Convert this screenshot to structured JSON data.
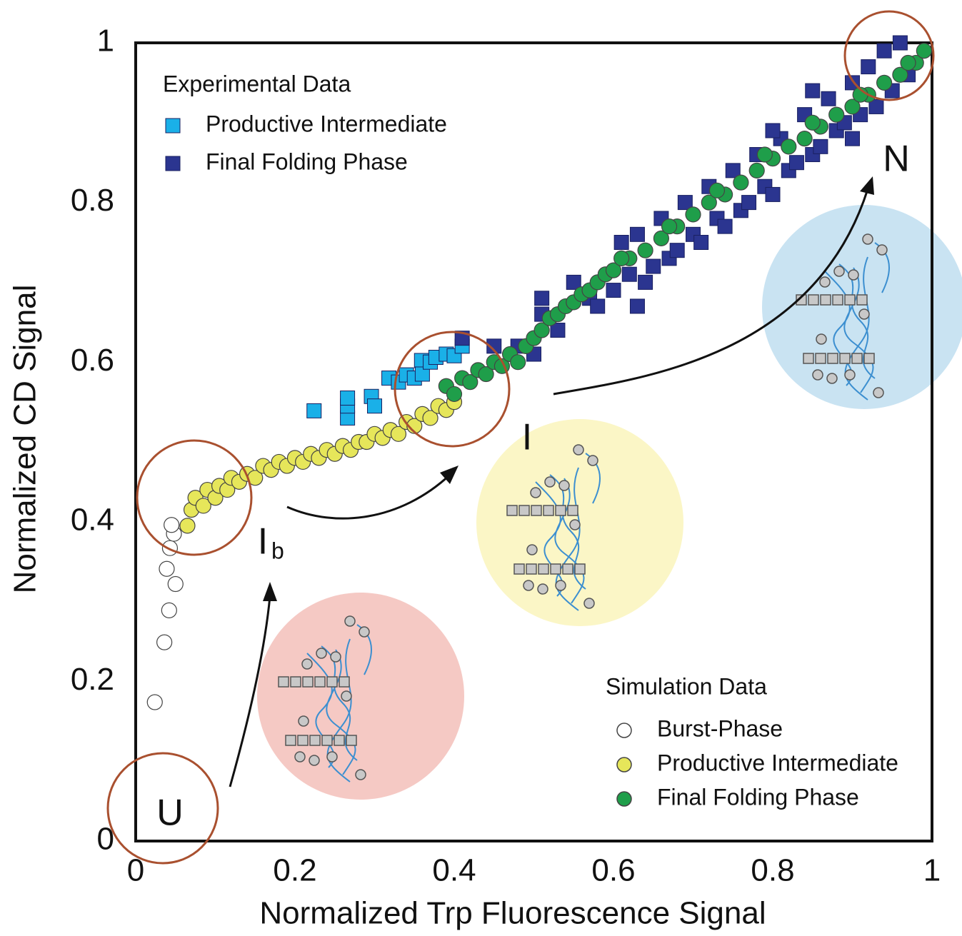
{
  "chart_data": {
    "type": "scatter",
    "x_label": "Normalized Trp Fluorescence Signal",
    "y_label": "Normalized CD Signal",
    "xlim": [
      0,
      1
    ],
    "ylim": [
      0,
      1
    ],
    "xticks": [
      0,
      0.2,
      0.4,
      0.6,
      0.8,
      1
    ],
    "yticks": [
      0,
      0.2,
      0.4,
      0.6,
      0.8,
      1
    ],
    "legend_titles": [
      "Experimental Data",
      "Simulation Data"
    ],
    "state_labels": [
      {
        "text": "U"
      },
      {
        "text": "I",
        "subscript": "b"
      },
      {
        "text": "I"
      },
      {
        "text": "N"
      }
    ],
    "series": [
      {
        "name": "Productive Intermediate",
        "color": "#1ab0e8",
        "marker": "square",
        "x": [
          0.224,
          0.266,
          0.266,
          0.266,
          0.296,
          0.3,
          0.318,
          0.33,
          0.34,
          0.35,
          0.359,
          0.36,
          0.37,
          0.377,
          0.39,
          0.4,
          0.41
        ],
        "values": [
          0.539,
          0.53,
          0.545,
          0.555,
          0.557,
          0.545,
          0.58,
          0.575,
          0.584,
          0.58,
          0.602,
          0.585,
          0.6,
          0.606,
          0.61,
          0.608,
          0.62
        ]
      },
      {
        "name": "Final Folding Phase",
        "color": "#2b3590",
        "marker": "square",
        "x": [
          0.41,
          0.45,
          0.48,
          0.5,
          0.51,
          0.53,
          0.55,
          0.57,
          0.58,
          0.6,
          0.61,
          0.62,
          0.63,
          0.64,
          0.65,
          0.66,
          0.67,
          0.68,
          0.69,
          0.7,
          0.71,
          0.72,
          0.73,
          0.74,
          0.75,
          0.76,
          0.77,
          0.78,
          0.79,
          0.8,
          0.81,
          0.82,
          0.83,
          0.84,
          0.85,
          0.86,
          0.87,
          0.88,
          0.89,
          0.9,
          0.91,
          0.92,
          0.93,
          0.94,
          0.95,
          0.96,
          0.97,
          0.9,
          0.85,
          0.8,
          0.51,
          0.63
        ],
        "values": [
          0.63,
          0.62,
          0.62,
          0.61,
          0.66,
          0.64,
          0.7,
          0.68,
          0.67,
          0.69,
          0.75,
          0.71,
          0.76,
          0.7,
          0.72,
          0.78,
          0.73,
          0.74,
          0.8,
          0.76,
          0.75,
          0.82,
          0.78,
          0.77,
          0.84,
          0.79,
          0.8,
          0.86,
          0.82,
          0.81,
          0.88,
          0.84,
          0.85,
          0.91,
          0.86,
          0.87,
          0.93,
          0.89,
          0.9,
          0.95,
          0.91,
          0.97,
          0.92,
          0.99,
          0.94,
          1,
          0.96,
          0.88,
          0.94,
          0.89,
          0.68,
          0.67
        ]
      },
      {
        "name": "Burst-Phase",
        "color": "#ffffff",
        "marker": "circle",
        "x": [
          0.024,
          0.036,
          0.042,
          0.039,
          0.05,
          0.043,
          0.048,
          0.045
        ],
        "values": [
          0.174,
          0.249,
          0.289,
          0.341,
          0.322,
          0.367,
          0.385,
          0.396
        ]
      },
      {
        "name": "Productive Intermediate",
        "color": "#e6e65a",
        "marker": "circle",
        "x": [
          0.065,
          0.07,
          0.075,
          0.085,
          0.09,
          0.1,
          0.105,
          0.115,
          0.12,
          0.13,
          0.14,
          0.15,
          0.16,
          0.17,
          0.18,
          0.19,
          0.2,
          0.21,
          0.22,
          0.23,
          0.24,
          0.25,
          0.26,
          0.27,
          0.28,
          0.29,
          0.3,
          0.31,
          0.32,
          0.33,
          0.34,
          0.35,
          0.36,
          0.37,
          0.38,
          0.39,
          0.4
        ],
        "values": [
          0.395,
          0.415,
          0.43,
          0.42,
          0.44,
          0.43,
          0.445,
          0.44,
          0.455,
          0.45,
          0.46,
          0.455,
          0.47,
          0.465,
          0.475,
          0.47,
          0.48,
          0.475,
          0.485,
          0.48,
          0.49,
          0.485,
          0.495,
          0.49,
          0.5,
          0.5,
          0.51,
          0.505,
          0.515,
          0.51,
          0.525,
          0.52,
          0.535,
          0.53,
          0.545,
          0.54,
          0.55
        ]
      },
      {
        "name": "Final Folding Phase",
        "color": "#1f9e4a",
        "marker": "circle",
        "x": [
          0.39,
          0.4,
          0.41,
          0.42,
          0.43,
          0.44,
          0.45,
          0.46,
          0.47,
          0.48,
          0.49,
          0.5,
          0.51,
          0.52,
          0.53,
          0.54,
          0.55,
          0.56,
          0.57,
          0.58,
          0.59,
          0.6,
          0.62,
          0.64,
          0.66,
          0.68,
          0.7,
          0.72,
          0.74,
          0.76,
          0.78,
          0.8,
          0.82,
          0.84,
          0.86,
          0.88,
          0.9,
          0.92,
          0.94,
          0.96,
          0.98,
          0.99,
          0.61,
          0.67,
          0.73,
          0.79,
          0.85,
          0.91,
          0.97
        ],
        "values": [
          0.57,
          0.56,
          0.58,
          0.575,
          0.59,
          0.585,
          0.6,
          0.595,
          0.61,
          0.6,
          0.62,
          0.63,
          0.64,
          0.655,
          0.66,
          0.67,
          0.675,
          0.685,
          0.69,
          0.7,
          0.71,
          0.715,
          0.73,
          0.74,
          0.755,
          0.77,
          0.785,
          0.8,
          0.81,
          0.825,
          0.84,
          0.855,
          0.87,
          0.88,
          0.895,
          0.91,
          0.92,
          0.935,
          0.95,
          0.96,
          0.975,
          0.99,
          0.73,
          0.77,
          0.815,
          0.86,
          0.9,
          0.935,
          0.975
        ]
      }
    ]
  }
}
